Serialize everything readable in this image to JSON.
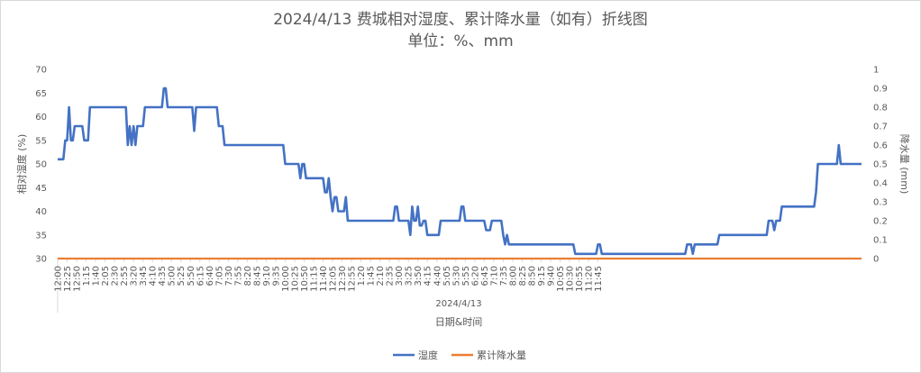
{
  "chart_data": {
    "type": "line",
    "title": "2024/4/13 费城相对湿度、累计降水量（如有）折线图",
    "subtitle": "单位：%、mm",
    "xlabel": "日期&时间",
    "x_group_label": "2024/4/13",
    "ylabel": "相对湿度 (%)",
    "y2label": "降水量 (mm)",
    "ylim": [
      30,
      70
    ],
    "y2lim": [
      0,
      1
    ],
    "yticks": [
      "30",
      "35",
      "40",
      "45",
      "50",
      "55",
      "60",
      "65",
      "70"
    ],
    "y2ticks": [
      "0",
      "0.1",
      "0.2",
      "0.3",
      "0.4",
      "0.5",
      "0.6",
      "0.7",
      "0.8",
      "0.9",
      "1"
    ],
    "x_tick_labels": [
      "12:00",
      "12:25",
      "12:50",
      "1:15",
      "1:40",
      "2:05",
      "2:30",
      "2:55",
      "3:20",
      "3:45",
      "4:10",
      "4:35",
      "5:00",
      "5:25",
      "5:50",
      "6:15",
      "6:40",
      "7:05",
      "7:30",
      "7:55",
      "8:20",
      "8:45",
      "9:10",
      "9:35",
      "10:00",
      "10:25",
      "10:50",
      "11:15",
      "11:40",
      "12:05",
      "12:30",
      "12:55",
      "1:20",
      "1:45",
      "2:10",
      "2:35",
      "3:00",
      "3:25",
      "3:50",
      "4:15",
      "4:40",
      "5:05",
      "5:30",
      "5:55",
      "6:20",
      "6:45",
      "7:10",
      "7:35",
      "8:00",
      "8:25",
      "8:50",
      "9:15",
      "9:40",
      "10:05",
      "10:30",
      "10:55",
      "11:20",
      "11:45"
    ],
    "x_tick_step": 5,
    "grid": false,
    "legend_position": "bottom",
    "series": [
      {
        "name": "湿度",
        "axis": "left",
        "color": "#4472C4",
        "values": [
          51,
          51,
          51,
          51,
          55,
          55,
          62,
          55,
          55,
          58,
          58,
          58,
          58,
          58,
          55,
          55,
          55,
          62,
          62,
          62,
          62,
          62,
          62,
          62,
          62,
          62,
          62,
          62,
          62,
          62,
          62,
          62,
          62,
          62,
          62,
          62,
          62,
          54,
          58,
          54,
          58,
          54,
          58,
          58,
          58,
          58,
          62,
          62,
          62,
          62,
          62,
          62,
          62,
          62,
          62,
          62,
          66,
          66,
          62,
          62,
          62,
          62,
          62,
          62,
          62,
          62,
          62,
          62,
          62,
          62,
          62,
          62,
          57,
          62,
          62,
          62,
          62,
          62,
          62,
          62,
          62,
          62,
          62,
          62,
          62,
          58,
          58,
          58,
          54,
          54,
          54,
          54,
          54,
          54,
          54,
          54,
          54,
          54,
          54,
          54,
          54,
          54,
          54,
          54,
          54,
          54,
          54,
          54,
          54,
          54,
          54,
          54,
          54,
          54,
          54,
          54,
          54,
          54,
          54,
          54,
          50,
          50,
          50,
          50,
          50,
          50,
          50,
          50,
          47,
          50,
          50,
          47,
          47,
          47,
          47,
          47,
          47,
          47,
          47,
          47,
          47,
          44,
          44,
          47,
          43,
          40,
          43,
          43,
          40,
          40,
          40,
          40,
          43,
          38,
          38,
          38,
          38,
          38,
          38,
          38,
          38,
          38,
          38,
          38,
          38,
          38,
          38,
          38,
          38,
          38,
          38,
          38,
          38,
          38,
          38,
          38,
          38,
          38,
          41,
          41,
          38,
          38,
          38,
          38,
          38,
          38,
          35,
          41,
          38,
          38,
          41,
          37,
          37,
          38,
          38,
          35,
          35,
          35,
          35,
          35,
          35,
          35,
          38,
          38,
          38,
          38,
          38,
          38,
          38,
          38,
          38,
          38,
          38,
          41,
          41,
          38,
          38,
          38,
          38,
          38,
          38,
          38,
          38,
          38,
          38,
          38,
          36,
          36,
          36,
          38,
          38,
          38,
          38,
          38,
          38,
          35,
          33,
          35,
          33,
          33,
          33,
          33,
          33,
          33,
          33,
          33,
          33,
          33,
          33,
          33,
          33,
          33,
          33,
          33,
          33,
          33,
          33,
          33,
          33,
          33,
          33,
          33,
          33,
          33,
          33,
          33,
          33,
          33,
          33,
          33,
          33,
          33,
          33,
          31,
          31,
          31,
          31,
          31,
          31,
          31,
          31,
          31,
          31,
          31,
          31,
          33,
          33,
          31,
          31,
          31,
          31,
          31,
          31,
          31,
          31,
          31,
          31,
          31,
          31,
          31,
          31,
          31,
          31,
          31,
          31,
          31,
          31,
          31,
          31,
          31,
          31,
          31,
          31,
          31,
          31,
          31,
          31,
          31,
          31,
          31,
          31,
          31,
          31,
          31,
          31,
          31,
          31,
          31,
          31,
          31,
          31,
          31,
          33,
          33,
          33,
          31,
          33,
          33,
          33,
          33,
          33,
          33,
          33,
          33,
          33,
          33,
          33,
          33,
          33,
          35,
          35,
          35,
          35,
          35,
          35,
          35,
          35,
          35,
          35,
          35,
          35,
          35,
          35,
          35,
          35,
          35,
          35,
          35,
          35,
          35,
          35,
          35,
          35,
          35,
          35,
          38,
          38,
          38,
          36,
          38,
          38,
          38,
          41,
          41,
          41,
          41,
          41,
          41,
          41,
          41,
          41,
          41,
          41,
          41,
          41,
          41,
          41,
          41,
          41,
          41,
          44,
          50,
          50,
          50,
          50,
          50,
          50,
          50,
          50,
          50,
          50,
          50,
          54,
          50,
          50,
          50,
          50,
          50,
          50,
          50,
          50,
          50,
          50,
          50,
          50
        ]
      },
      {
        "name": "累计降水量",
        "axis": "right",
        "color": "#ED7D31",
        "values": "all 0"
      }
    ]
  }
}
